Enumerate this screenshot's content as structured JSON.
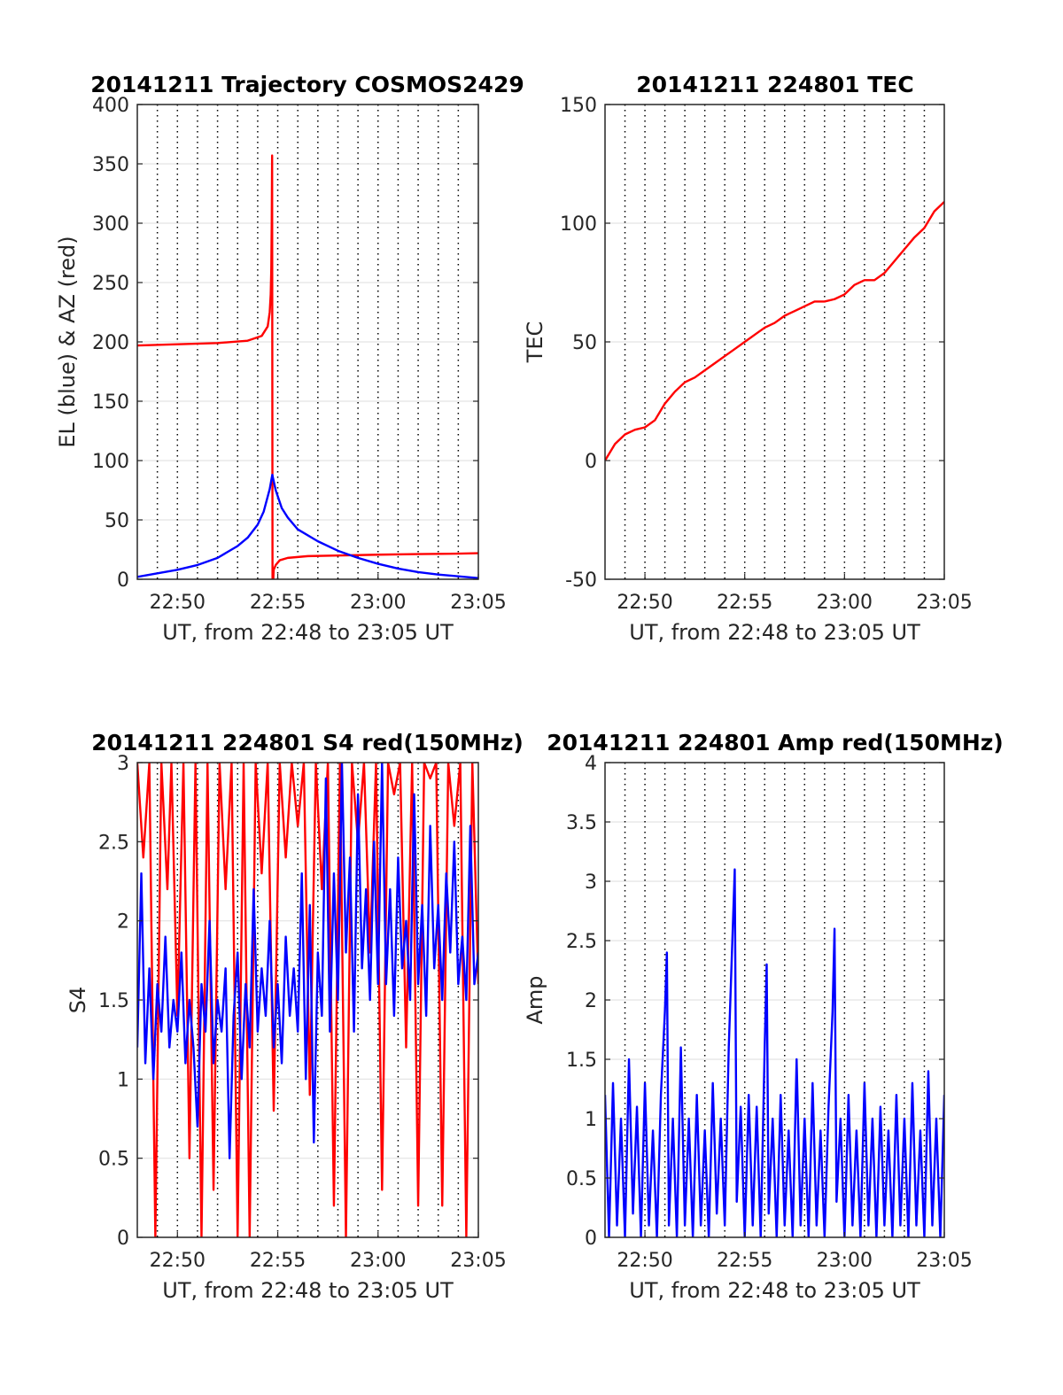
{
  "chart_data": [
    {
      "id": "trajectory",
      "type": "line",
      "title": "20141211 Trajectory COSMOS2429",
      "xlabel": "UT, from 22:48 to 23:05 UT",
      "ylabel": "EL (blue) & AZ (red)",
      "xlim": [
        -2,
        15
      ],
      "ylim": [
        0,
        400
      ],
      "x_tick_labels": [
        {
          "x": 0,
          "label": "22:50"
        },
        {
          "x": 5,
          "label": "22:55"
        },
        {
          "x": 10,
          "label": "23:00"
        },
        {
          "x": 15,
          "label": "23:05"
        }
      ],
      "y_ticks": [
        0,
        50,
        100,
        150,
        200,
        250,
        300,
        350,
        400
      ],
      "grid": {
        "x": "dotted",
        "y": "solid"
      },
      "series": [
        {
          "color": "#ff0000",
          "role": "AZ",
          "x": [
            -2,
            0,
            2,
            3.5,
            4.2,
            4.5,
            4.6,
            4.65,
            4.68,
            4.7,
            4.72,
            4.74,
            4.76,
            4.78,
            4.79,
            4.8,
            4.9,
            5.1,
            5.5,
            6.5,
            8,
            10,
            12,
            14,
            15
          ],
          "y": [
            197,
            198,
            199,
            201,
            205,
            213,
            225,
            240,
            262,
            300,
            357,
            0,
            0,
            0,
            5,
            8,
            12,
            16,
            18,
            19.5,
            20,
            20.7,
            21.2,
            21.6,
            22
          ]
        },
        {
          "color": "#0000ff",
          "role": "EL",
          "x": [
            -2,
            -1,
            0,
            1,
            2,
            3,
            3.5,
            4,
            4.3,
            4.6,
            4.73,
            4.9,
            5.2,
            5.5,
            6,
            7,
            8,
            9,
            10,
            11,
            12,
            13,
            14,
            15
          ],
          "y": [
            2,
            5,
            8,
            12,
            18,
            28,
            35,
            46,
            57,
            76,
            88,
            75,
            60,
            52,
            42,
            32,
            24,
            18,
            13,
            9,
            6,
            4,
            2.5,
            1
          ]
        }
      ]
    },
    {
      "id": "tec",
      "type": "line",
      "title": "20141211 224801 TEC",
      "xlabel": "UT, from 22:48 to 23:05 UT",
      "ylabel": "TEC",
      "xlim": [
        -2,
        15
      ],
      "ylim": [
        -50,
        150
      ],
      "x_tick_labels": [
        {
          "x": 0,
          "label": "22:50"
        },
        {
          "x": 5,
          "label": "22:55"
        },
        {
          "x": 10,
          "label": "23:00"
        },
        {
          "x": 15,
          "label": "23:05"
        }
      ],
      "y_ticks": [
        -50,
        0,
        50,
        100,
        150
      ],
      "grid": {
        "x": "dotted",
        "y": "solid"
      },
      "series": [
        {
          "color": "#ff0000",
          "x": [
            -2,
            -1.5,
            -1,
            -0.5,
            0,
            0.5,
            1,
            1.5,
            2,
            2.5,
            3,
            3.5,
            4,
            4.5,
            5,
            5.5,
            6,
            6.5,
            7,
            7.5,
            8,
            8.5,
            9,
            9.5,
            10,
            10.5,
            11,
            11.5,
            12,
            12.5,
            13,
            13.5,
            14,
            14.5,
            15
          ],
          "y": [
            0,
            7,
            11,
            13,
            14,
            17,
            24,
            29,
            33,
            35,
            38,
            41,
            44,
            47,
            50,
            53,
            56,
            58,
            61,
            63,
            65,
            67,
            67,
            68,
            70,
            74,
            76,
            76,
            79,
            84,
            89,
            94,
            98,
            105,
            109
          ]
        }
      ]
    },
    {
      "id": "s4",
      "type": "line",
      "title": "20141211 224801 S4 red(150MHz)",
      "xlabel": "UT, from 22:48 to 23:05 UT",
      "ylabel": "S4",
      "xlim": [
        -2,
        15
      ],
      "ylim": [
        0,
        3
      ],
      "x_tick_labels": [
        {
          "x": 0,
          "label": "22:50"
        },
        {
          "x": 5,
          "label": "22:55"
        },
        {
          "x": 10,
          "label": "23:00"
        },
        {
          "x": 15,
          "label": "23:05"
        }
      ],
      "y_ticks": [
        0,
        0.5,
        1,
        1.5,
        2,
        2.5,
        3
      ],
      "y_tick_labels": [
        "0",
        "0.5",
        "1",
        "1.5",
        "2",
        "2.5",
        "3"
      ],
      "grid": {
        "x": "dotted",
        "y": "solid"
      },
      "series": [
        {
          "color": "#ff0000",
          "x": [
            -2,
            -1.7,
            -1.4,
            -1.1,
            -0.8,
            -0.5,
            -0.3,
            0,
            0.3,
            0.6,
            0.9,
            1.2,
            1.5,
            1.8,
            2.1,
            2.4,
            2.7,
            3,
            3.3,
            3.6,
            3.9,
            4.2,
            4.5,
            4.8,
            5.1,
            5.4,
            5.7,
            6,
            6.3,
            6.6,
            6.9,
            7.2,
            7.5,
            7.8,
            8.1,
            8.4,
            8.7,
            9,
            9.3,
            9.6,
            9.9,
            10.2,
            10.5,
            10.8,
            11.1,
            11.4,
            11.7,
            12,
            12.3,
            12.6,
            12.9,
            13.2,
            13.5,
            13.8,
            14.1,
            14.4,
            14.7,
            15
          ],
          "y": [
            3,
            2.4,
            3,
            0,
            3,
            2.2,
            3,
            1.4,
            3,
            0.5,
            3,
            0,
            3,
            0.3,
            3,
            2.2,
            3,
            0,
            3,
            0,
            3,
            2.3,
            3,
            0.8,
            3,
            2.4,
            3,
            2.6,
            3,
            0.9,
            3,
            2.2,
            3,
            0.2,
            3,
            0,
            3,
            2.5,
            3,
            1.8,
            3,
            0.3,
            3,
            2.8,
            3,
            1.2,
            3,
            0.2,
            3,
            2.9,
            3,
            0.2,
            3,
            2.6,
            3,
            0,
            3,
            1.6
          ]
        },
        {
          "color": "#0000ff",
          "x": [
            -2,
            -1.8,
            -1.6,
            -1.4,
            -1.2,
            -1,
            -0.8,
            -0.6,
            -0.4,
            -0.2,
            0,
            0.2,
            0.4,
            0.6,
            0.8,
            1,
            1.2,
            1.4,
            1.6,
            1.8,
            2,
            2.2,
            2.4,
            2.6,
            2.8,
            3,
            3.2,
            3.4,
            3.6,
            3.8,
            4,
            4.2,
            4.4,
            4.6,
            4.8,
            5,
            5.2,
            5.4,
            5.6,
            5.8,
            6,
            6.2,
            6.4,
            6.6,
            6.8,
            7,
            7.2,
            7.4,
            7.6,
            7.8,
            8,
            8.2,
            8.4,
            8.6,
            8.8,
            9,
            9.2,
            9.4,
            9.6,
            9.8,
            10,
            10.2,
            10.4,
            10.6,
            10.8,
            11,
            11.2,
            11.4,
            11.6,
            11.8,
            12,
            12.2,
            12.4,
            12.6,
            12.8,
            13,
            13.2,
            13.4,
            13.6,
            13.8,
            14,
            14.2,
            14.4,
            14.6,
            14.8,
            15
          ],
          "y": [
            1.2,
            2.3,
            1.1,
            1.7,
            1.0,
            1.6,
            1.3,
            1.9,
            1.2,
            1.5,
            1.3,
            1.8,
            1.1,
            1.5,
            1.2,
            0.7,
            1.6,
            1.3,
            2.0,
            1.1,
            1.5,
            1.3,
            1.7,
            0.5,
            1.4,
            1.8,
            1.0,
            1.6,
            1.2,
            2.2,
            1.3,
            1.7,
            1.4,
            2.0,
            1.2,
            1.6,
            1.1,
            1.9,
            1.4,
            1.7,
            1.3,
            2.3,
            1.0,
            2.1,
            0.6,
            1.8,
            1.4,
            2.9,
            1.3,
            2.3,
            1.5,
            3.0,
            1.8,
            2.4,
            1.3,
            2.8,
            1.7,
            2.2,
            1.5,
            2.5,
            1.6,
            3.0,
            1.6,
            2.2,
            1.4,
            2.4,
            1.7,
            2.0,
            1.5,
            2.8,
            1.6,
            2.1,
            1.4,
            2.6,
            1.7,
            2.1,
            1.5,
            2.3,
            1.8,
            2.5,
            1.6,
            1.9,
            1.5,
            2.6,
            1.6,
            1.8
          ]
        }
      ]
    },
    {
      "id": "amp",
      "type": "line",
      "title": "20141211 224801 Amp red(150MHz)",
      "xlabel": "UT, from 22:48 to 23:05 UT",
      "ylabel": "Amp",
      "xlim": [
        -2,
        15
      ],
      "ylim": [
        0,
        4
      ],
      "x_tick_labels": [
        {
          "x": 0,
          "label": "22:50"
        },
        {
          "x": 5,
          "label": "22:55"
        },
        {
          "x": 10,
          "label": "23:00"
        },
        {
          "x": 15,
          "label": "23:05"
        }
      ],
      "y_ticks": [
        0,
        0.5,
        1,
        1.5,
        2,
        2.5,
        3,
        3.5,
        4
      ],
      "y_tick_labels": [
        "0",
        "0.5",
        "1",
        "1.5",
        "2",
        "2.5",
        "3",
        "3.5",
        "4"
      ],
      "grid": {
        "x": "dotted",
        "y": "solid"
      },
      "series": [
        {
          "color": "#0000ff",
          "x": [
            -2,
            -1.8,
            -1.6,
            -1.4,
            -1.2,
            -1,
            -0.8,
            -0.6,
            -0.4,
            -0.2,
            0,
            0.2,
            0.4,
            0.6,
            0.8,
            1,
            1.1,
            1.2,
            1.4,
            1.6,
            1.8,
            2,
            2.2,
            2.4,
            2.6,
            2.8,
            3,
            3.2,
            3.4,
            3.6,
            3.8,
            4,
            4.2,
            4.4,
            4.5,
            4.6,
            4.8,
            5,
            5.2,
            5.4,
            5.6,
            5.8,
            6,
            6.1,
            6.2,
            6.4,
            6.6,
            6.8,
            7,
            7.2,
            7.4,
            7.6,
            7.8,
            8,
            8.2,
            8.4,
            8.6,
            8.8,
            9,
            9.2,
            9.4,
            9.5,
            9.6,
            9.8,
            10,
            10.2,
            10.4,
            10.6,
            10.8,
            11,
            11.2,
            11.4,
            11.6,
            11.8,
            12,
            12.2,
            12.4,
            12.6,
            12.8,
            13,
            13.2,
            13.4,
            13.6,
            13.8,
            14,
            14.2,
            14.4,
            14.6,
            14.8,
            15
          ],
          "y": [
            1.2,
            0.0,
            1.3,
            0.1,
            1.0,
            0.0,
            1.5,
            0.2,
            1.1,
            0.0,
            1.3,
            0.1,
            0.9,
            0.0,
            1.2,
            1.9,
            2.4,
            0.1,
            1.0,
            0.0,
            1.6,
            0.1,
            1.0,
            0.0,
            1.2,
            0.1,
            0.9,
            0.0,
            1.3,
            0.2,
            1.0,
            0.1,
            1.6,
            2.6,
            3.1,
            0.3,
            1.1,
            0.0,
            1.2,
            0.1,
            1.1,
            0.0,
            1.6,
            2.3,
            0.2,
            1.0,
            0.0,
            1.2,
            0.1,
            0.9,
            0.0,
            1.5,
            0.1,
            1.0,
            0.0,
            1.3,
            0.1,
            0.9,
            0.0,
            1.1,
            1.9,
            2.6,
            0.3,
            1.0,
            0.0,
            1.2,
            0.1,
            0.9,
            0.0,
            1.3,
            0.1,
            1.0,
            0.0,
            1.1,
            0.1,
            0.9,
            0.0,
            1.2,
            0.1,
            1.0,
            0.0,
            1.3,
            0.1,
            0.9,
            0.0,
            1.4,
            0.1,
            1.0,
            0.0,
            1.2
          ]
        }
      ]
    }
  ]
}
